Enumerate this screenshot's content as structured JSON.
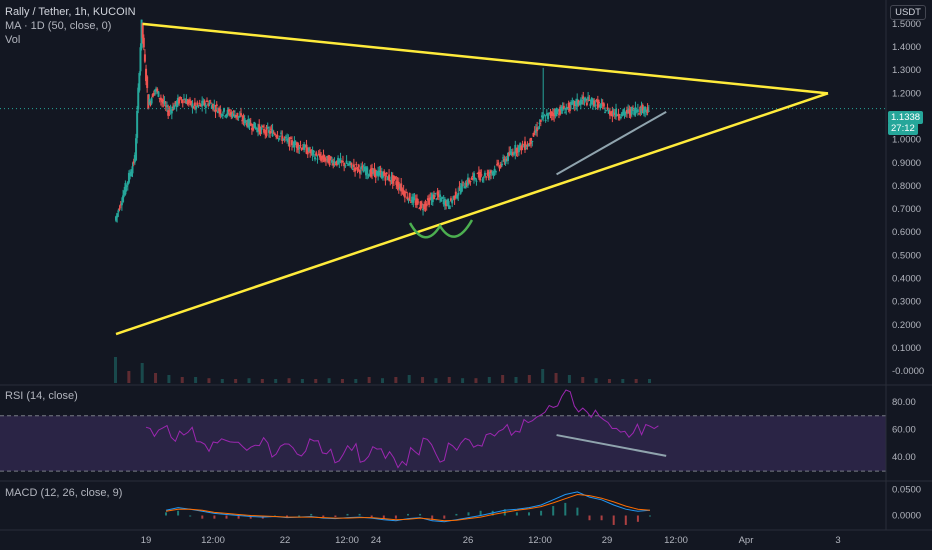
{
  "header": {
    "symbol_line": "Rally / Tether, 1h, KUCOIN",
    "ma_line": "MA · 1D (50, close, 0)",
    "vol_line": "Vol",
    "currency": "USDT"
  },
  "price_badge": {
    "price": "1.1338",
    "countdown": "27:12",
    "color": "#26a69a"
  },
  "panes": {
    "rsi_title": "RSI (14, close)",
    "macd_title": "MACD (12, 26, close, 9)"
  },
  "colors": {
    "background": "#131722",
    "up": "#26a69a",
    "down": "#ef5350",
    "trendline": "#ffeb3b",
    "rsi_line": "#9c27b0",
    "rsi_band": "#7e57c2",
    "macd_line": "#2196f3",
    "signal_line": "#ff6d00",
    "annotation_green": "#4caf50",
    "annotation_gray": "#90a4ae"
  },
  "chart_data": [
    {
      "type": "candlestick",
      "title": "Rally / Tether, 1h, KUCOIN",
      "x_ticks": [
        "19",
        "12:00",
        "22",
        "12:00",
        "24",
        "26",
        "12:00",
        "29",
        "12:00",
        "Apr",
        "3"
      ],
      "y_ticks": [
        "1.5000",
        "1.4000",
        "1.3000",
        "1.2000",
        "1.1000",
        "1.0000",
        "0.9000",
        "0.8000",
        "0.7000",
        "0.6000",
        "0.5000",
        "0.4000",
        "0.3000",
        "0.2000",
        "0.1000",
        "-0.0000"
      ],
      "ylim": [
        -0.03,
        1.56
      ],
      "last_price": 1.1338,
      "price_path": [
        [
          0,
          0.65
        ],
        [
          1.5,
          0.92
        ],
        [
          2,
          1.5
        ],
        [
          2.5,
          1.15
        ],
        [
          3,
          1.22
        ],
        [
          4,
          1.12
        ],
        [
          5,
          1.18
        ],
        [
          6,
          1.14
        ],
        [
          7,
          1.16
        ],
        [
          8,
          1.12
        ],
        [
          9,
          1.11
        ],
        [
          10,
          1.07
        ],
        [
          11,
          1.04
        ],
        [
          12,
          1.03
        ],
        [
          13,
          0.99
        ],
        [
          14,
          0.97
        ],
        [
          15,
          0.93
        ],
        [
          16,
          0.91
        ],
        [
          17,
          0.9
        ],
        [
          18,
          0.88
        ],
        [
          19,
          0.86
        ],
        [
          20,
          0.85
        ],
        [
          21,
          0.82
        ],
        [
          22,
          0.75
        ],
        [
          23,
          0.71
        ],
        [
          24,
          0.76
        ],
        [
          25,
          0.72
        ],
        [
          26,
          0.8
        ],
        [
          27,
          0.84
        ],
        [
          28,
          0.85
        ],
        [
          29,
          0.9
        ],
        [
          30,
          0.96
        ],
        [
          31,
          0.98
        ],
        [
          32,
          1.09
        ],
        [
          33,
          1.12
        ],
        [
          34,
          1.14
        ],
        [
          35,
          1.17
        ],
        [
          36,
          1.16
        ],
        [
          37,
          1.12
        ],
        [
          38,
          1.11
        ],
        [
          39,
          1.13
        ],
        [
          40,
          1.1338
        ]
      ],
      "spikes": [
        [
          32,
          1.31
        ]
      ],
      "volume": [
        0.65,
        0.3,
        0.5,
        0.25,
        0.2,
        0.15,
        0.15,
        0.12,
        0.1,
        0.1,
        0.12,
        0.1,
        0.1,
        0.12,
        0.1,
        0.1,
        0.12,
        0.1,
        0.1,
        0.15,
        0.12,
        0.15,
        0.2,
        0.15,
        0.12,
        0.15,
        0.12,
        0.12,
        0.15,
        0.2,
        0.15,
        0.2,
        0.35,
        0.25,
        0.2,
        0.15,
        0.12,
        0.1,
        0.1,
        0.1,
        0.1
      ],
      "trendlines": [
        {
          "name": "upper",
          "from": [
            2,
            1.5
          ],
          "to": [
            62,
            1.2
          ]
        },
        {
          "name": "lower",
          "from": [
            0,
            0.16
          ],
          "to": [
            62,
            1.2
          ]
        },
        {
          "name": "rising-support",
          "from": [
            33,
            0.85
          ],
          "to": [
            42,
            1.12
          ]
        }
      ]
    },
    {
      "type": "line",
      "title": "RSI (14, close)",
      "y_ticks": [
        "80.00",
        "60.00",
        "40.00"
      ],
      "ylim": [
        25,
        90
      ],
      "band": [
        30,
        70
      ],
      "values": [
        58,
        62,
        55,
        60,
        52,
        48,
        55,
        50,
        46,
        52,
        44,
        48,
        42,
        50,
        45,
        40,
        48,
        38,
        46,
        42,
        36,
        44,
        50,
        40,
        48,
        52,
        45,
        55,
        60,
        58,
        65,
        70,
        78,
        85,
        76,
        72,
        68,
        62,
        55,
        60,
        60
      ],
      "annotation": {
        "from": [
          33,
          56
        ],
        "to": [
          42,
          41
        ]
      }
    },
    {
      "type": "macd",
      "title": "MACD (12, 26, close, 9)",
      "y_ticks": [
        "0.0500",
        "0.0000"
      ],
      "ylim": [
        -0.02,
        0.06
      ],
      "macd": [
        0.01,
        0.015,
        0.012,
        0.008,
        0.004,
        0.002,
        0.0,
        -0.002,
        -0.003,
        -0.002,
        -0.004,
        -0.003,
        -0.002,
        -0.005,
        -0.006,
        -0.004,
        -0.003,
        -0.005,
        -0.008,
        -0.01,
        -0.006,
        -0.004,
        -0.01,
        -0.012,
        -0.008,
        -0.004,
        0.0,
        0.005,
        0.01,
        0.012,
        0.015,
        0.02,
        0.03,
        0.04,
        0.045,
        0.035,
        0.03,
        0.02,
        0.012,
        0.008,
        0.01
      ],
      "signal": [
        0.008,
        0.012,
        0.012,
        0.01,
        0.006,
        0.004,
        0.002,
        0.0,
        -0.001,
        -0.002,
        -0.003,
        -0.003,
        -0.003,
        -0.004,
        -0.005,
        -0.005,
        -0.004,
        -0.004,
        -0.006,
        -0.008,
        -0.007,
        -0.005,
        -0.007,
        -0.01,
        -0.009,
        -0.006,
        -0.003,
        0.002,
        0.006,
        0.01,
        0.013,
        0.017,
        0.024,
        0.032,
        0.04,
        0.038,
        0.033,
        0.026,
        0.018,
        0.012,
        0.01
      ]
    }
  ]
}
